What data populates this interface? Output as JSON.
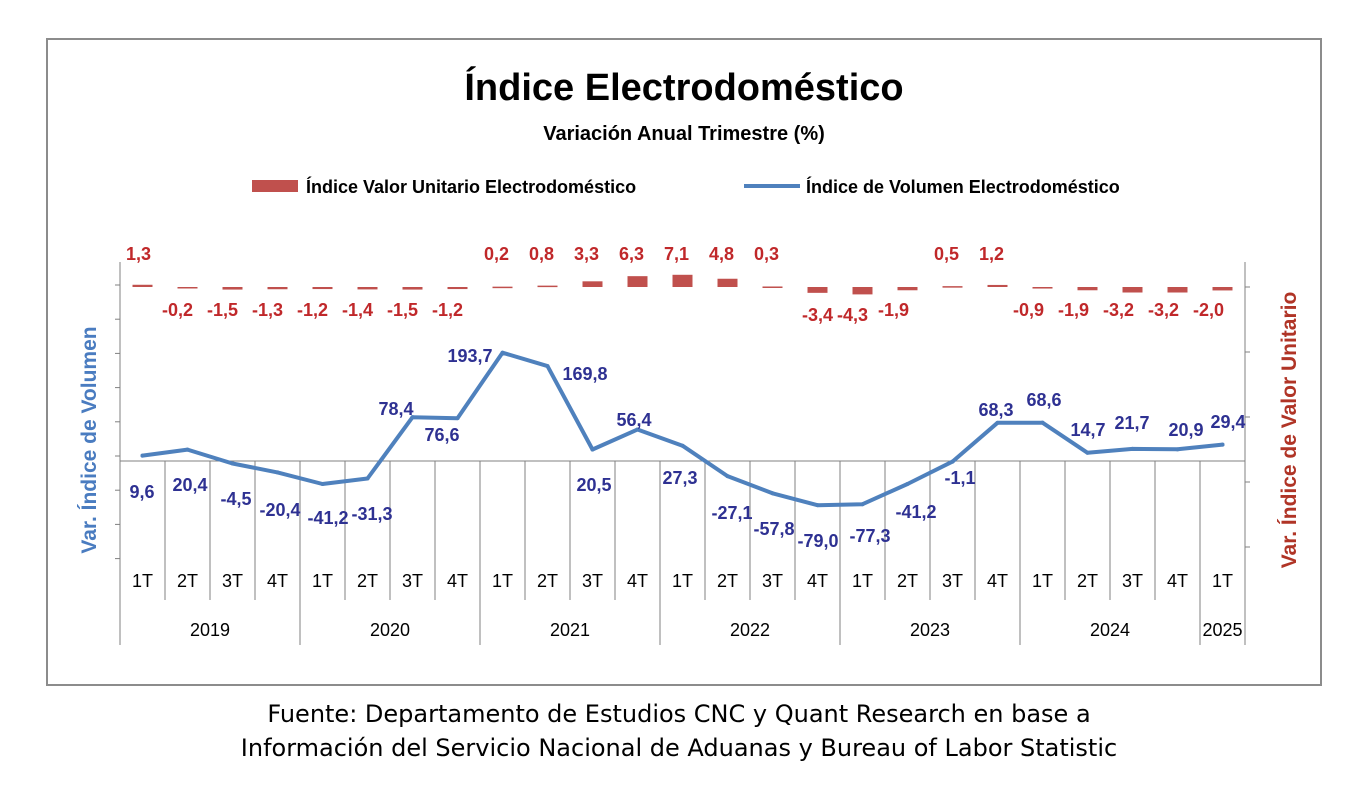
{
  "chart_data": {
    "type": "bar+line",
    "title": "Índice Electrodoméstico",
    "subtitle": "Variación Anual Trimestre  (%)",
    "ylabel_left": "Var. Índice de Volumen",
    "ylabel_right": "Var. Índice de Valor Unitario",
    "categories": [
      "1T",
      "2T",
      "3T",
      "4T",
      "1T",
      "2T",
      "3T",
      "4T",
      "1T",
      "2T",
      "3T",
      "4T",
      "1T",
      "2T",
      "3T",
      "4T",
      "1T",
      "2T",
      "3T",
      "4T",
      "1T",
      "2T",
      "3T",
      "4T",
      "1T"
    ],
    "years": [
      {
        "label": "2019",
        "span": 4
      },
      {
        "label": "2020",
        "span": 4
      },
      {
        "label": "2021",
        "span": 4
      },
      {
        "label": "2022",
        "span": 4
      },
      {
        "label": "2023",
        "span": 4
      },
      {
        "label": "2024",
        "span": 4
      },
      {
        "label": "2025",
        "span": 1
      }
    ],
    "series": [
      {
        "name": "Índice Valor Unitario Electrodoméstico",
        "type": "bar",
        "axis": "right",
        "color": "#c0504d",
        "values": [
          1.3,
          -0.2,
          -1.5,
          -1.3,
          -1.2,
          -1.4,
          -1.5,
          -1.2,
          0.2,
          0.8,
          3.3,
          6.3,
          7.1,
          4.8,
          0.3,
          -3.4,
          -4.3,
          -1.9,
          0.5,
          1.2,
          -0.9,
          -1.9,
          -3.2,
          -3.2,
          -2.0
        ],
        "labels": [
          "1,3",
          "-0,2",
          "-1,5",
          "-1,3",
          "-1,2",
          "-1,4",
          "-1,5",
          "-1,2",
          "0,2",
          "0,8",
          "3,3",
          "6,3",
          "7,1",
          "4,8",
          "0,3",
          "-3,4",
          "-4,3",
          "-1,9",
          "0,5",
          "1,2",
          "-0,9",
          "-1,9",
          "-3,2",
          "-3,2",
          "-2,0"
        ]
      },
      {
        "name": "Índice de Volumen Electrodoméstico",
        "type": "line",
        "axis": "left",
        "color": "#4f81bd",
        "values": [
          9.6,
          20.4,
          -4.5,
          -20.4,
          -41.2,
          -31.3,
          78.4,
          76.6,
          193.7,
          169.8,
          20.5,
          56.4,
          27.3,
          -27.1,
          -57.8,
          -79.0,
          -77.3,
          -41.2,
          -1.1,
          68.3,
          68.6,
          14.7,
          21.7,
          20.9,
          29.4
        ],
        "labels": [
          "9,6",
          "20,4",
          "-4,5",
          "-20,4",
          "-41,2",
          "-31,3",
          "78,4",
          "76,6",
          "193,7",
          "169,8",
          "20,5",
          "56,4",
          "27,3",
          "-27,1",
          "-57,8",
          "-79,0",
          "-77,3",
          "-41,2",
          "-1,1",
          "68,3",
          "68,6",
          "14,7",
          "21,7",
          "20,9",
          "29,4"
        ]
      }
    ],
    "legend_position": "top",
    "grid": false
  },
  "source_note": {
    "line1": "Fuente: Departamento de Estudios CNC y Quant Research en base a",
    "line2": "Información del Servicio Nacional de Aduanas y Bureau of Labor Statistic"
  }
}
